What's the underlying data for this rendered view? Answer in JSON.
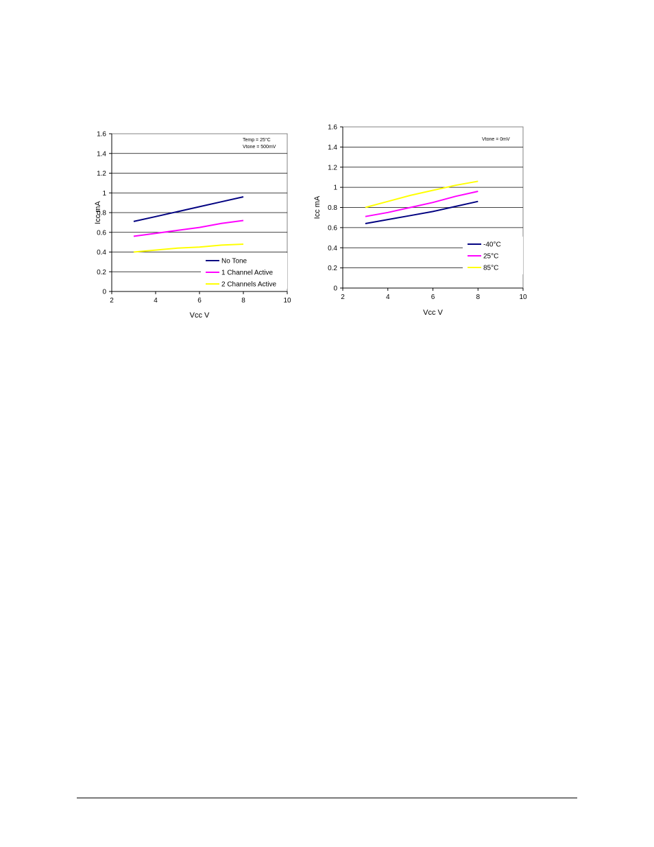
{
  "chart_data": [
    {
      "type": "line",
      "xlabel": "Vcc V",
      "ylabel": "Icc mA",
      "xlim": [
        2,
        10
      ],
      "ylim": [
        0,
        1.6
      ],
      "xticks": [
        "2",
        "4",
        "6",
        "8",
        "10"
      ],
      "yticks": [
        "0",
        "0.2",
        "0.4",
        "0.6",
        "0.8",
        "1",
        "1.2",
        "1.4",
        "1.6"
      ],
      "grid": "horizontal",
      "annotation": [
        "Temp = 25°C",
        "Vtone = 500mV"
      ],
      "legend_position": "bottom-right",
      "series": [
        {
          "name": "No Tone",
          "color": "#000080",
          "x": [
            3,
            4,
            5,
            6,
            7,
            8
          ],
          "y": [
            0.71,
            0.76,
            0.81,
            0.86,
            0.91,
            0.96
          ]
        },
        {
          "name": "1 Channel Active",
          "color": "#FF00FF",
          "x": [
            3,
            4,
            5,
            6,
            7,
            8
          ],
          "y": [
            0.56,
            0.59,
            0.62,
            0.65,
            0.69,
            0.72
          ]
        },
        {
          "name": "2 Channels Active",
          "color": "#FFFF00",
          "x": [
            3,
            4,
            5,
            6,
            7,
            8
          ],
          "y": [
            0.4,
            0.42,
            0.44,
            0.45,
            0.47,
            0.48
          ]
        }
      ]
    },
    {
      "type": "line",
      "xlabel": "Vcc V",
      "ylabel": "Icc mA",
      "xlim": [
        2,
        10
      ],
      "ylim": [
        0,
        1.6
      ],
      "xticks": [
        "2",
        "4",
        "6",
        "8",
        "10"
      ],
      "yticks": [
        "0",
        "0.2",
        "0.4",
        "0.6",
        "0.8",
        "1",
        "1.2",
        "1.4",
        "1.6"
      ],
      "grid": "horizontal",
      "annotation": [
        "Vtone = 0mV"
      ],
      "legend_position": "bottom-right",
      "series": [
        {
          "name": "-40°C",
          "color": "#000080",
          "x": [
            3,
            4,
            5,
            6,
            7,
            8
          ],
          "y": [
            0.64,
            0.68,
            0.72,
            0.76,
            0.81,
            0.86
          ]
        },
        {
          "name": "25°C",
          "color": "#FF00FF",
          "x": [
            3,
            4,
            5,
            6,
            7,
            8
          ],
          "y": [
            0.71,
            0.75,
            0.8,
            0.85,
            0.91,
            0.96
          ]
        },
        {
          "name": "85°C",
          "color": "#FFFF00",
          "x": [
            3,
            4,
            5,
            6,
            7,
            8
          ],
          "y": [
            0.8,
            0.86,
            0.92,
            0.97,
            1.02,
            1.06
          ]
        }
      ]
    }
  ]
}
